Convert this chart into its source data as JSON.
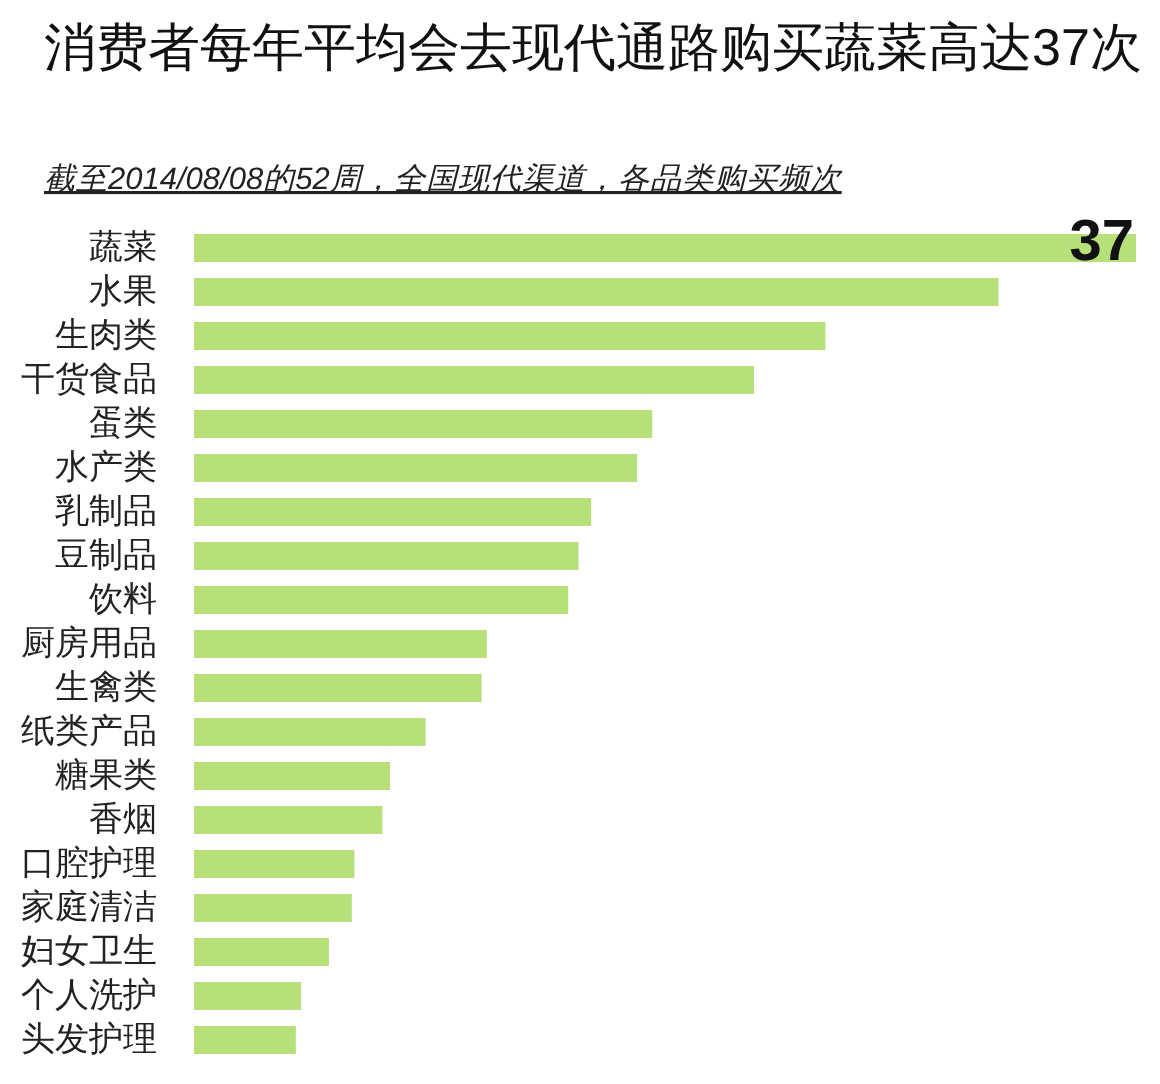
{
  "chart_data": {
    "type": "bar",
    "orientation": "horizontal",
    "title": "消费者每年平均会去现代通路购买蔬菜高达37次",
    "subtitle": "截至2014/08/08的52周，全国现代渠道，各品类购买频次",
    "categories": [
      "蔬菜",
      "水果",
      "生肉类",
      "干货食品",
      "蛋类",
      "水产类",
      "乳制品",
      "豆制品",
      "饮料",
      "厨房用品",
      "生禽类",
      "纸类产品",
      "糖果类",
      "香烟",
      "口腔护理",
      "家庭清洁",
      "妇女卫生",
      "个人洗护",
      "头发护理"
    ],
    "values": [
      37,
      31.6,
      24.8,
      22.0,
      18.0,
      17.4,
      15.6,
      15.1,
      14.7,
      11.5,
      11.3,
      9.1,
      7.7,
      7.4,
      6.3,
      6.2,
      5.3,
      4.2,
      4.0
    ],
    "value_labels": [
      "37",
      null,
      null,
      null,
      null,
      null,
      null,
      null,
      null,
      null,
      null,
      null,
      null,
      null,
      null,
      null,
      null,
      null,
      null
    ],
    "color": "#b8e07a"
  }
}
